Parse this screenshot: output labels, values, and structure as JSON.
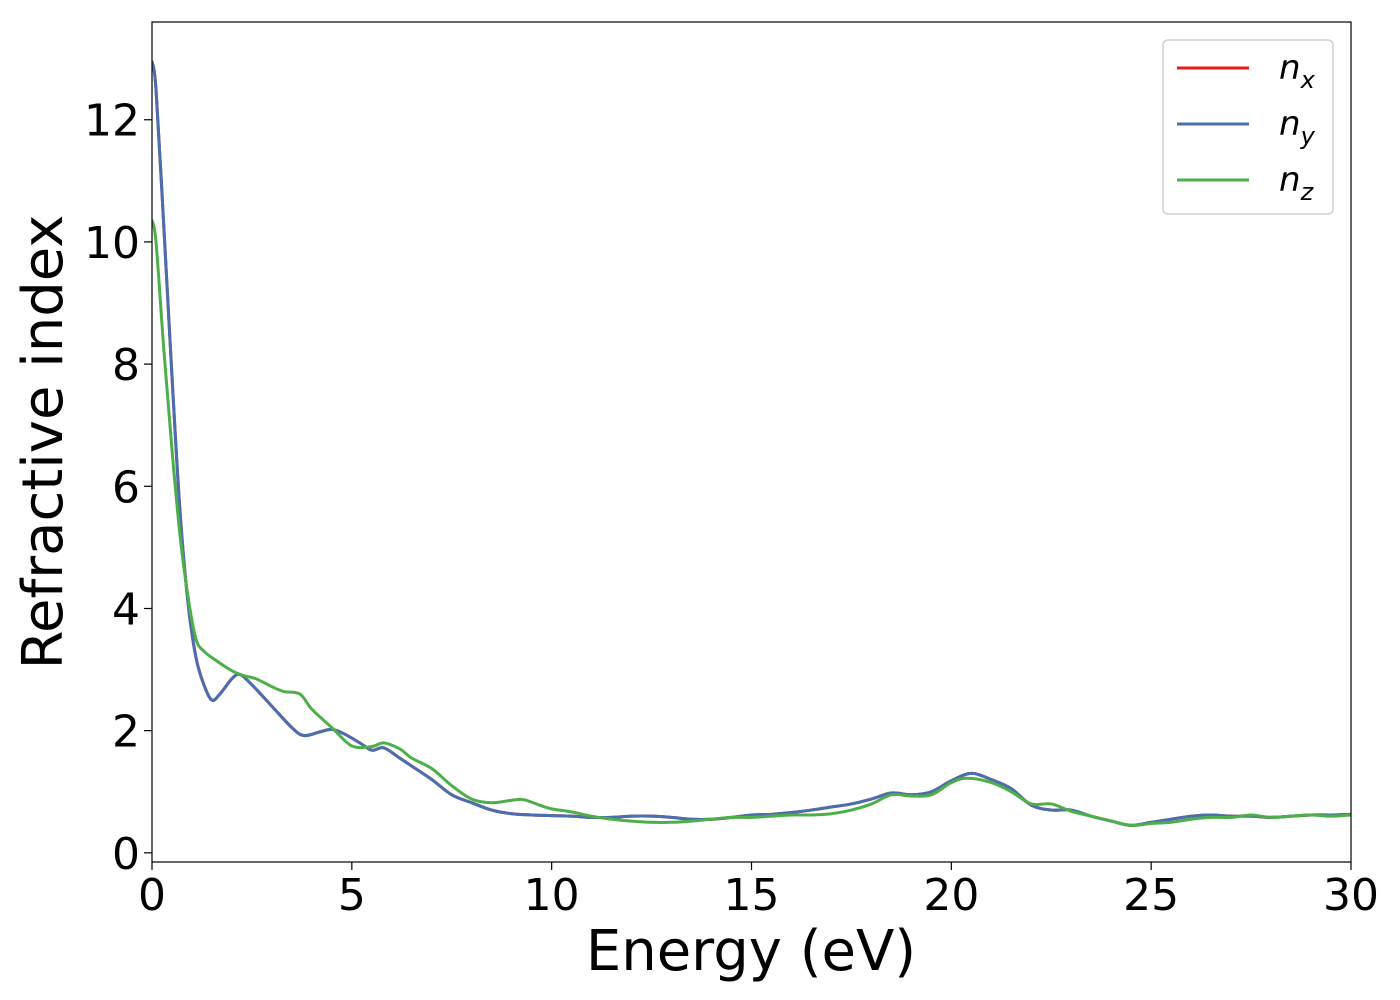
{
  "chart_data": {
    "type": "line",
    "title": "",
    "xlabel": "Energy (eV)",
    "ylabel": "Refractive index",
    "xlim": [
      0,
      30
    ],
    "ylim": [
      -0.15,
      13.6
    ],
    "xticks": [
      0,
      5,
      10,
      15,
      20,
      25,
      30
    ],
    "yticks": [
      0,
      2,
      4,
      6,
      8,
      10,
      12
    ],
    "grid": false,
    "legend_position": "top-right",
    "series": [
      {
        "name": "n_x",
        "label_main": "n",
        "label_sub": "x",
        "color": "#e41a1c",
        "x": [
          0,
          0.1,
          0.3,
          0.5,
          0.7,
          0.9,
          1.1,
          1.3,
          1.5,
          1.7,
          2.0,
          2.2,
          2.5,
          3.0,
          3.5,
          3.8,
          4.2,
          4.5,
          4.8,
          5.2,
          5.5,
          5.8,
          6.2,
          6.5,
          7.0,
          7.5,
          8.0,
          8.5,
          9.0,
          9.5,
          10.0,
          10.5,
          11.0,
          11.5,
          12.0,
          12.5,
          13.0,
          13.5,
          14.0,
          14.5,
          15.0,
          15.5,
          16.0,
          16.5,
          17.0,
          17.5,
          18.0,
          18.5,
          19.0,
          19.5,
          20.0,
          20.5,
          21.0,
          21.5,
          22.0,
          22.5,
          23.0,
          23.5,
          24.0,
          24.5,
          25.0,
          25.5,
          26.0,
          26.5,
          27.0,
          27.5,
          28.0,
          28.5,
          29.0,
          29.5,
          30.0
        ],
        "values": [
          12.95,
          12.5,
          10.2,
          7.8,
          5.6,
          4.1,
          3.2,
          2.75,
          2.5,
          2.6,
          2.85,
          2.92,
          2.75,
          2.4,
          2.05,
          1.92,
          1.98,
          2.02,
          1.95,
          1.8,
          1.68,
          1.72,
          1.55,
          1.42,
          1.2,
          0.95,
          0.82,
          0.7,
          0.64,
          0.62,
          0.61,
          0.6,
          0.58,
          0.58,
          0.6,
          0.6,
          0.58,
          0.55,
          0.55,
          0.58,
          0.62,
          0.63,
          0.66,
          0.7,
          0.75,
          0.8,
          0.88,
          0.98,
          0.95,
          1.0,
          1.18,
          1.3,
          1.2,
          1.05,
          0.78,
          0.7,
          0.7,
          0.6,
          0.52,
          0.45,
          0.5,
          0.55,
          0.6,
          0.62,
          0.6,
          0.6,
          0.58,
          0.6,
          0.62,
          0.62,
          0.63
        ]
      },
      {
        "name": "n_y",
        "label_main": "n",
        "label_sub": "y",
        "color": "#4a6fb0",
        "x": [
          0,
          0.1,
          0.3,
          0.5,
          0.7,
          0.9,
          1.1,
          1.3,
          1.5,
          1.7,
          2.0,
          2.2,
          2.5,
          3.0,
          3.5,
          3.8,
          4.2,
          4.5,
          4.8,
          5.2,
          5.5,
          5.8,
          6.2,
          6.5,
          7.0,
          7.5,
          8.0,
          8.5,
          9.0,
          9.5,
          10.0,
          10.5,
          11.0,
          11.5,
          12.0,
          12.5,
          13.0,
          13.5,
          14.0,
          14.5,
          15.0,
          15.5,
          16.0,
          16.5,
          17.0,
          17.5,
          18.0,
          18.5,
          19.0,
          19.5,
          20.0,
          20.5,
          21.0,
          21.5,
          22.0,
          22.5,
          23.0,
          23.5,
          24.0,
          24.5,
          25.0,
          25.5,
          26.0,
          26.5,
          27.0,
          27.5,
          28.0,
          28.5,
          29.0,
          29.5,
          30.0
        ],
        "values": [
          12.95,
          12.5,
          10.2,
          7.8,
          5.6,
          4.1,
          3.2,
          2.75,
          2.5,
          2.6,
          2.85,
          2.92,
          2.75,
          2.4,
          2.05,
          1.92,
          1.98,
          2.02,
          1.95,
          1.8,
          1.68,
          1.72,
          1.55,
          1.42,
          1.2,
          0.95,
          0.82,
          0.7,
          0.64,
          0.62,
          0.61,
          0.6,
          0.58,
          0.58,
          0.6,
          0.6,
          0.58,
          0.55,
          0.55,
          0.58,
          0.62,
          0.63,
          0.66,
          0.7,
          0.75,
          0.8,
          0.88,
          0.98,
          0.95,
          1.0,
          1.18,
          1.3,
          1.2,
          1.05,
          0.78,
          0.7,
          0.7,
          0.6,
          0.52,
          0.45,
          0.5,
          0.55,
          0.6,
          0.62,
          0.6,
          0.6,
          0.58,
          0.6,
          0.62,
          0.62,
          0.63
        ]
      },
      {
        "name": "n_z",
        "label_main": "n",
        "label_sub": "z",
        "color": "#4daf4a",
        "x": [
          0,
          0.1,
          0.3,
          0.5,
          0.7,
          0.9,
          1.1,
          1.3,
          1.6,
          2.0,
          2.3,
          2.6,
          3.0,
          3.3,
          3.7,
          4.0,
          4.5,
          5.0,
          5.5,
          5.8,
          6.2,
          6.5,
          7.0,
          7.5,
          8.0,
          8.5,
          9.0,
          9.3,
          9.7,
          10.0,
          10.5,
          11.0,
          11.5,
          12.0,
          12.5,
          13.0,
          13.5,
          14.0,
          14.5,
          15.0,
          15.5,
          16.0,
          16.5,
          17.0,
          17.5,
          18.0,
          18.5,
          19.0,
          19.5,
          20.0,
          20.4,
          21.0,
          21.5,
          22.0,
          22.5,
          23.0,
          23.5,
          24.0,
          24.5,
          25.0,
          25.5,
          26.0,
          26.5,
          27.0,
          27.5,
          28.0,
          28.5,
          29.0,
          29.5,
          30.0
        ],
        "values": [
          10.35,
          10.0,
          8.2,
          6.6,
          5.2,
          4.2,
          3.5,
          3.3,
          3.15,
          2.98,
          2.9,
          2.85,
          2.72,
          2.64,
          2.6,
          2.35,
          2.05,
          1.75,
          1.74,
          1.8,
          1.7,
          1.55,
          1.38,
          1.1,
          0.88,
          0.82,
          0.86,
          0.87,
          0.78,
          0.72,
          0.67,
          0.6,
          0.55,
          0.52,
          0.5,
          0.5,
          0.52,
          0.55,
          0.58,
          0.58,
          0.6,
          0.62,
          0.62,
          0.64,
          0.7,
          0.8,
          0.95,
          0.93,
          0.95,
          1.15,
          1.22,
          1.15,
          1.0,
          0.8,
          0.8,
          0.68,
          0.6,
          0.52,
          0.45,
          0.48,
          0.5,
          0.55,
          0.58,
          0.58,
          0.62,
          0.58,
          0.6,
          0.62,
          0.6,
          0.62
        ]
      }
    ]
  }
}
